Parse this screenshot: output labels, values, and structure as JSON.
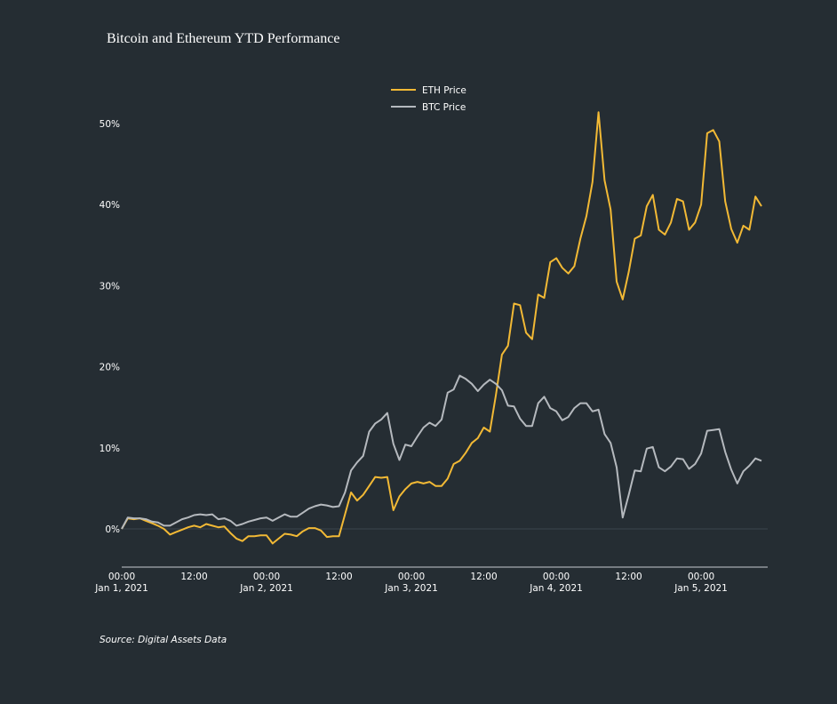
{
  "chart_data": {
    "type": "line",
    "title": "Bitcoin and Ethereum YTD Performance",
    "source": "Source: Digital Assets Data",
    "xlabel": "",
    "ylabel": "",
    "ylim": [
      -4.7,
      55
    ],
    "xlim": [
      "2021-01-01 00:00",
      "2021-01-05 10:00"
    ],
    "grid": false,
    "legend": "top-center",
    "y_ticks": [
      {
        "value": 0,
        "label": "0%"
      },
      {
        "value": 10,
        "label": "10%"
      },
      {
        "value": 20,
        "label": "20%"
      },
      {
        "value": 30,
        "label": "30%"
      },
      {
        "value": 40,
        "label": "40%"
      },
      {
        "value": 50,
        "label": "50%"
      }
    ],
    "x_ticks": [
      {
        "value": "2021-01-01 00:00",
        "label": "00:00",
        "sublabel": "Jan 1, 2021"
      },
      {
        "value": "2021-01-01 12:00",
        "label": "12:00",
        "sublabel": ""
      },
      {
        "value": "2021-01-02 00:00",
        "label": "00:00",
        "sublabel": "Jan 2, 2021"
      },
      {
        "value": "2021-01-02 12:00",
        "label": "12:00",
        "sublabel": ""
      },
      {
        "value": "2021-01-03 00:00",
        "label": "00:00",
        "sublabel": "Jan 3, 2021"
      },
      {
        "value": "2021-01-03 12:00",
        "label": "12:00",
        "sublabel": ""
      },
      {
        "value": "2021-01-04 00:00",
        "label": "00:00",
        "sublabel": "Jan 4, 2021"
      },
      {
        "value": "2021-01-04 12:00",
        "label": "12:00",
        "sublabel": ""
      },
      {
        "value": "2021-01-05 00:00",
        "label": "00:00",
        "sublabel": "Jan 5, 2021"
      }
    ],
    "x": [
      "2021-01-01 00:00",
      "2021-01-01 01:00",
      "2021-01-01 02:00",
      "2021-01-01 03:00",
      "2021-01-01 04:00",
      "2021-01-01 05:00",
      "2021-01-01 06:00",
      "2021-01-01 07:00",
      "2021-01-01 08:00",
      "2021-01-01 09:00",
      "2021-01-01 10:00",
      "2021-01-01 11:00",
      "2021-01-01 12:00",
      "2021-01-01 13:00",
      "2021-01-01 14:00",
      "2021-01-01 15:00",
      "2021-01-01 16:00",
      "2021-01-01 17:00",
      "2021-01-01 18:00",
      "2021-01-01 19:00",
      "2021-01-01 20:00",
      "2021-01-01 21:00",
      "2021-01-01 22:00",
      "2021-01-01 23:00",
      "2021-01-02 00:00",
      "2021-01-02 01:00",
      "2021-01-02 02:00",
      "2021-01-02 03:00",
      "2021-01-02 04:00",
      "2021-01-02 05:00",
      "2021-01-02 06:00",
      "2021-01-02 07:00",
      "2021-01-02 08:00",
      "2021-01-02 09:00",
      "2021-01-02 10:00",
      "2021-01-02 11:00",
      "2021-01-02 12:00",
      "2021-01-02 13:00",
      "2021-01-02 14:00",
      "2021-01-02 15:00",
      "2021-01-02 16:00",
      "2021-01-02 17:00",
      "2021-01-02 18:00",
      "2021-01-02 19:00",
      "2021-01-02 20:00",
      "2021-01-02 21:00",
      "2021-01-02 22:00",
      "2021-01-02 23:00",
      "2021-01-03 00:00",
      "2021-01-03 01:00",
      "2021-01-03 02:00",
      "2021-01-03 03:00",
      "2021-01-03 04:00",
      "2021-01-03 05:00",
      "2021-01-03 06:00",
      "2021-01-03 07:00",
      "2021-01-03 08:00",
      "2021-01-03 09:00",
      "2021-01-03 10:00",
      "2021-01-03 11:00",
      "2021-01-03 12:00",
      "2021-01-03 13:00",
      "2021-01-03 14:00",
      "2021-01-03 15:00",
      "2021-01-03 16:00",
      "2021-01-03 17:00",
      "2021-01-03 18:00",
      "2021-01-03 19:00",
      "2021-01-03 20:00",
      "2021-01-03 21:00",
      "2021-01-03 22:00",
      "2021-01-03 23:00",
      "2021-01-04 00:00",
      "2021-01-04 01:00",
      "2021-01-04 02:00",
      "2021-01-04 03:00",
      "2021-01-04 04:00",
      "2021-01-04 05:00",
      "2021-01-04 06:00",
      "2021-01-04 07:00",
      "2021-01-04 08:00",
      "2021-01-04 09:00",
      "2021-01-04 10:00",
      "2021-01-04 11:00",
      "2021-01-04 12:00",
      "2021-01-04 13:00",
      "2021-01-04 14:00",
      "2021-01-04 15:00",
      "2021-01-04 16:00",
      "2021-01-04 17:00",
      "2021-01-04 18:00",
      "2021-01-04 19:00",
      "2021-01-04 20:00",
      "2021-01-04 21:00",
      "2021-01-04 22:00",
      "2021-01-04 23:00",
      "2021-01-05 00:00",
      "2021-01-05 01:00",
      "2021-01-05 02:00",
      "2021-01-05 03:00",
      "2021-01-05 04:00",
      "2021-01-05 05:00",
      "2021-01-05 06:00",
      "2021-01-05 07:00",
      "2021-01-05 08:00",
      "2021-01-05 09:00",
      "2021-01-05 10:00"
    ],
    "series": [
      {
        "name": "ETH Price",
        "color": "#f2b935",
        "values": [
          0,
          1.3,
          1.2,
          1.3,
          1.0,
          0.7,
          0.4,
          0.0,
          -0.7,
          -0.4,
          -0.1,
          0.2,
          0.4,
          0.2,
          0.6,
          0.4,
          0.2,
          0.3,
          -0.5,
          -1.2,
          -1.5,
          -0.9,
          -0.9,
          -0.8,
          -0.8,
          -1.8,
          -1.2,
          -0.6,
          -0.7,
          -0.9,
          -0.3,
          0.1,
          0.1,
          -0.2,
          -1.0,
          -0.9,
          -0.9,
          1.8,
          4.5,
          3.5,
          4.2,
          5.3,
          6.4,
          6.3,
          6.4,
          2.3,
          4.0,
          4.9,
          5.6,
          5.8,
          5.6,
          5.8,
          5.3,
          5.3,
          6.2,
          8.0,
          8.4,
          9.4,
          10.6,
          11.2,
          12.5,
          12.0,
          16.5,
          21.5,
          22.6,
          27.8,
          27.6,
          24.2,
          23.4,
          28.9,
          28.5,
          32.9,
          33.4,
          32.2,
          31.5,
          32.4,
          35.8,
          38.6,
          42.8,
          51.4,
          43.0,
          39.4,
          30.5,
          28.3,
          31.7,
          35.8,
          36.2,
          39.8,
          41.2,
          36.9,
          36.3,
          37.8,
          40.7,
          40.4,
          36.9,
          37.8,
          40.0,
          48.8,
          49.2,
          47.8,
          40.4,
          37.0,
          35.3,
          37.4,
          36.9,
          41.0,
          39.8
        ]
      },
      {
        "name": "BTC Price",
        "color": "#b5b9be",
        "values": [
          0,
          1.4,
          1.3,
          1.3,
          1.2,
          0.9,
          0.8,
          0.4,
          0.4,
          0.8,
          1.2,
          1.4,
          1.7,
          1.8,
          1.7,
          1.8,
          1.2,
          1.3,
          1.0,
          0.4,
          0.6,
          0.9,
          1.1,
          1.3,
          1.4,
          1.0,
          1.4,
          1.8,
          1.5,
          1.5,
          2.0,
          2.5,
          2.8,
          3.0,
          2.9,
          2.7,
          2.8,
          4.5,
          7.2,
          8.2,
          9.0,
          12.0,
          13.0,
          13.5,
          14.3,
          10.5,
          8.5,
          10.4,
          10.2,
          11.4,
          12.5,
          13.1,
          12.7,
          13.5,
          16.8,
          17.2,
          18.9,
          18.5,
          17.9,
          17.0,
          17.8,
          18.4,
          17.9,
          17.1,
          15.2,
          15.1,
          13.6,
          12.7,
          12.7,
          15.5,
          16.3,
          14.9,
          14.5,
          13.4,
          13.8,
          14.9,
          15.5,
          15.5,
          14.5,
          14.7,
          11.7,
          10.6,
          7.6,
          1.4,
          4.2,
          7.2,
          7.1,
          9.9,
          10.1,
          7.6,
          7.1,
          7.7,
          8.7,
          8.6,
          7.4,
          8.0,
          9.3,
          12.1,
          12.2,
          12.3,
          9.5,
          7.3,
          5.6,
          7.1,
          7.8,
          8.7,
          8.4
        ]
      }
    ]
  }
}
